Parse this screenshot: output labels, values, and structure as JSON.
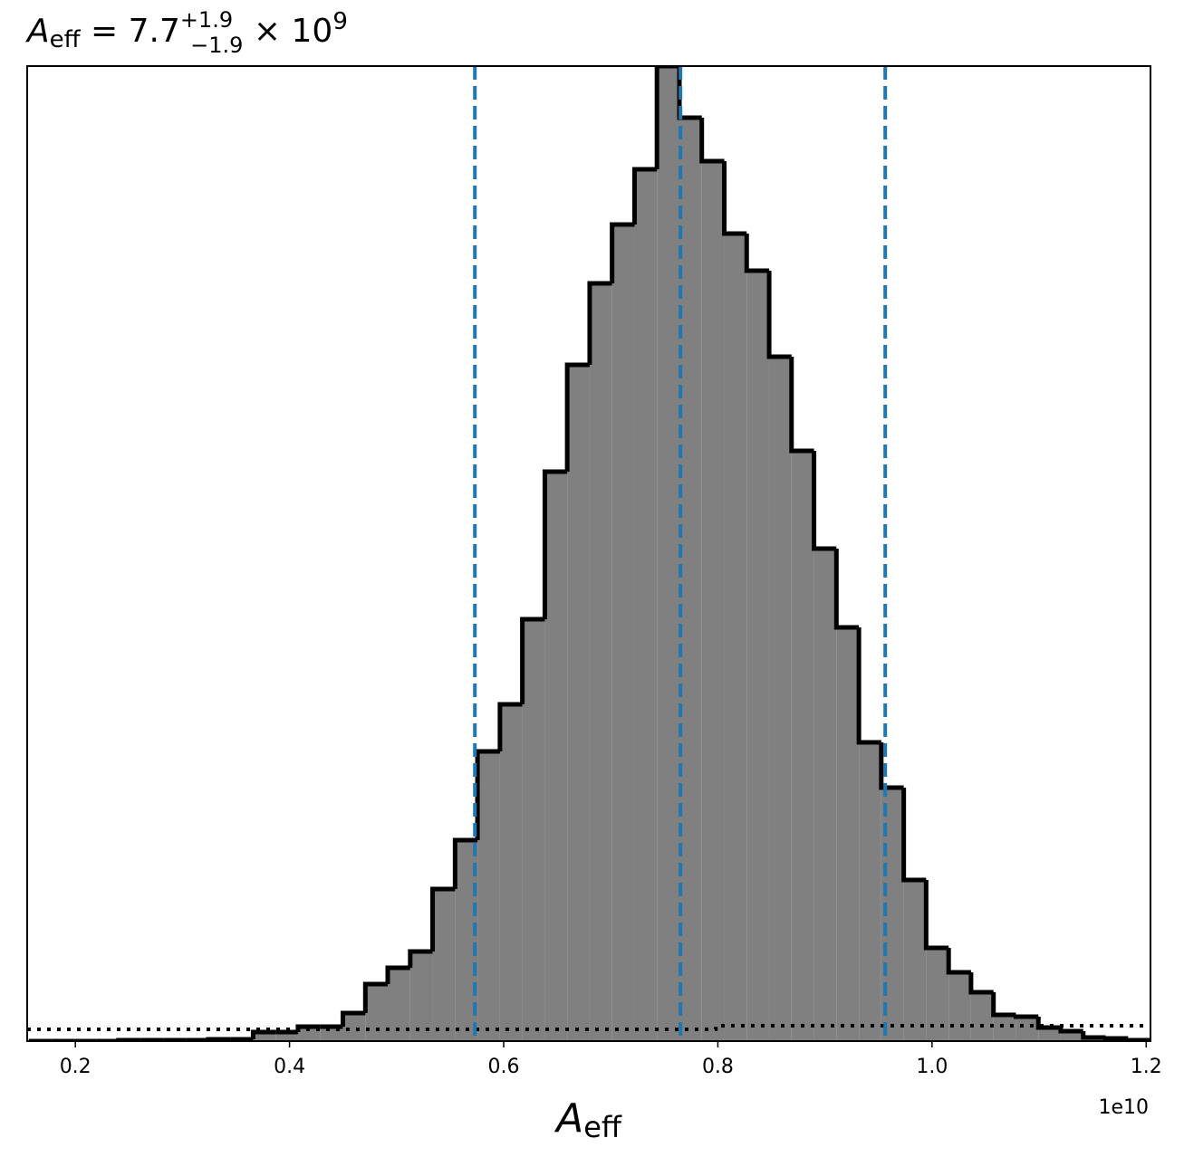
{
  "chart_data": {
    "type": "histogram",
    "title": {
      "symbol": "A",
      "subscript": "eff",
      "equals": " = ",
      "value": "7.7",
      "upper": "+1.9",
      "lower": "−1.9",
      "times": " × 10",
      "exponent": "9"
    },
    "xlabel": {
      "symbol": "A",
      "subscript": "eff"
    },
    "x_offset_label": "1e10",
    "bins": [
      0.1565,
      0.1775,
      0.1984,
      0.2194,
      0.2403,
      0.2613,
      0.2822,
      0.3032,
      0.3241,
      0.3451,
      0.366,
      0.387,
      0.4079,
      0.4289,
      0.4498,
      0.4708,
      0.4917,
      0.5127,
      0.5336,
      0.5546,
      0.5755,
      0.5965,
      0.6174,
      0.6384,
      0.6593,
      0.6803,
      0.7012,
      0.7222,
      0.7431,
      0.7641,
      0.785,
      0.806,
      0.8269,
      0.8479,
      0.8688,
      0.8898,
      0.9107,
      0.9317,
      0.9526,
      0.9736,
      0.9945,
      1.0155,
      1.0364,
      1.0574,
      1.0783,
      1.0993,
      1.1202,
      1.1412,
      1.1621,
      1.1831,
      1.204
    ],
    "counts": [
      0,
      0,
      0,
      0,
      1,
      1,
      1,
      1,
      2,
      2,
      10,
      10,
      16,
      16,
      31,
      63,
      81,
      99,
      168,
      222,
      320,
      372,
      466,
      629,
      747,
      837,
      902,
      963,
      1077,
      1020,
      972,
      892,
      851,
      756,
      652,
      544,
      457,
      330,
      280,
      178,
      103,
      76,
      54,
      29,
      27,
      15,
      11,
      4,
      3,
      1
    ],
    "color": "#808080",
    "edgecolor": "#000000",
    "quantiles": {
      "values": [
        0.5731,
        0.7651,
        0.9563
      ],
      "color": "#1f77b4"
    },
    "prior": {
      "x": [
        0.155,
        0.7981,
        1.204
      ],
      "values": [
        13,
        17,
        17
      ],
      "color": "#000000"
    },
    "xlim": [
      0.155,
      1.204
    ],
    "ylim": [
      0,
      1077
    ],
    "xticks": [
      0.2,
      0.4,
      0.6,
      0.8,
      {
        "value": 1,
        "label": "1.0"
      },
      1.2
    ]
  }
}
